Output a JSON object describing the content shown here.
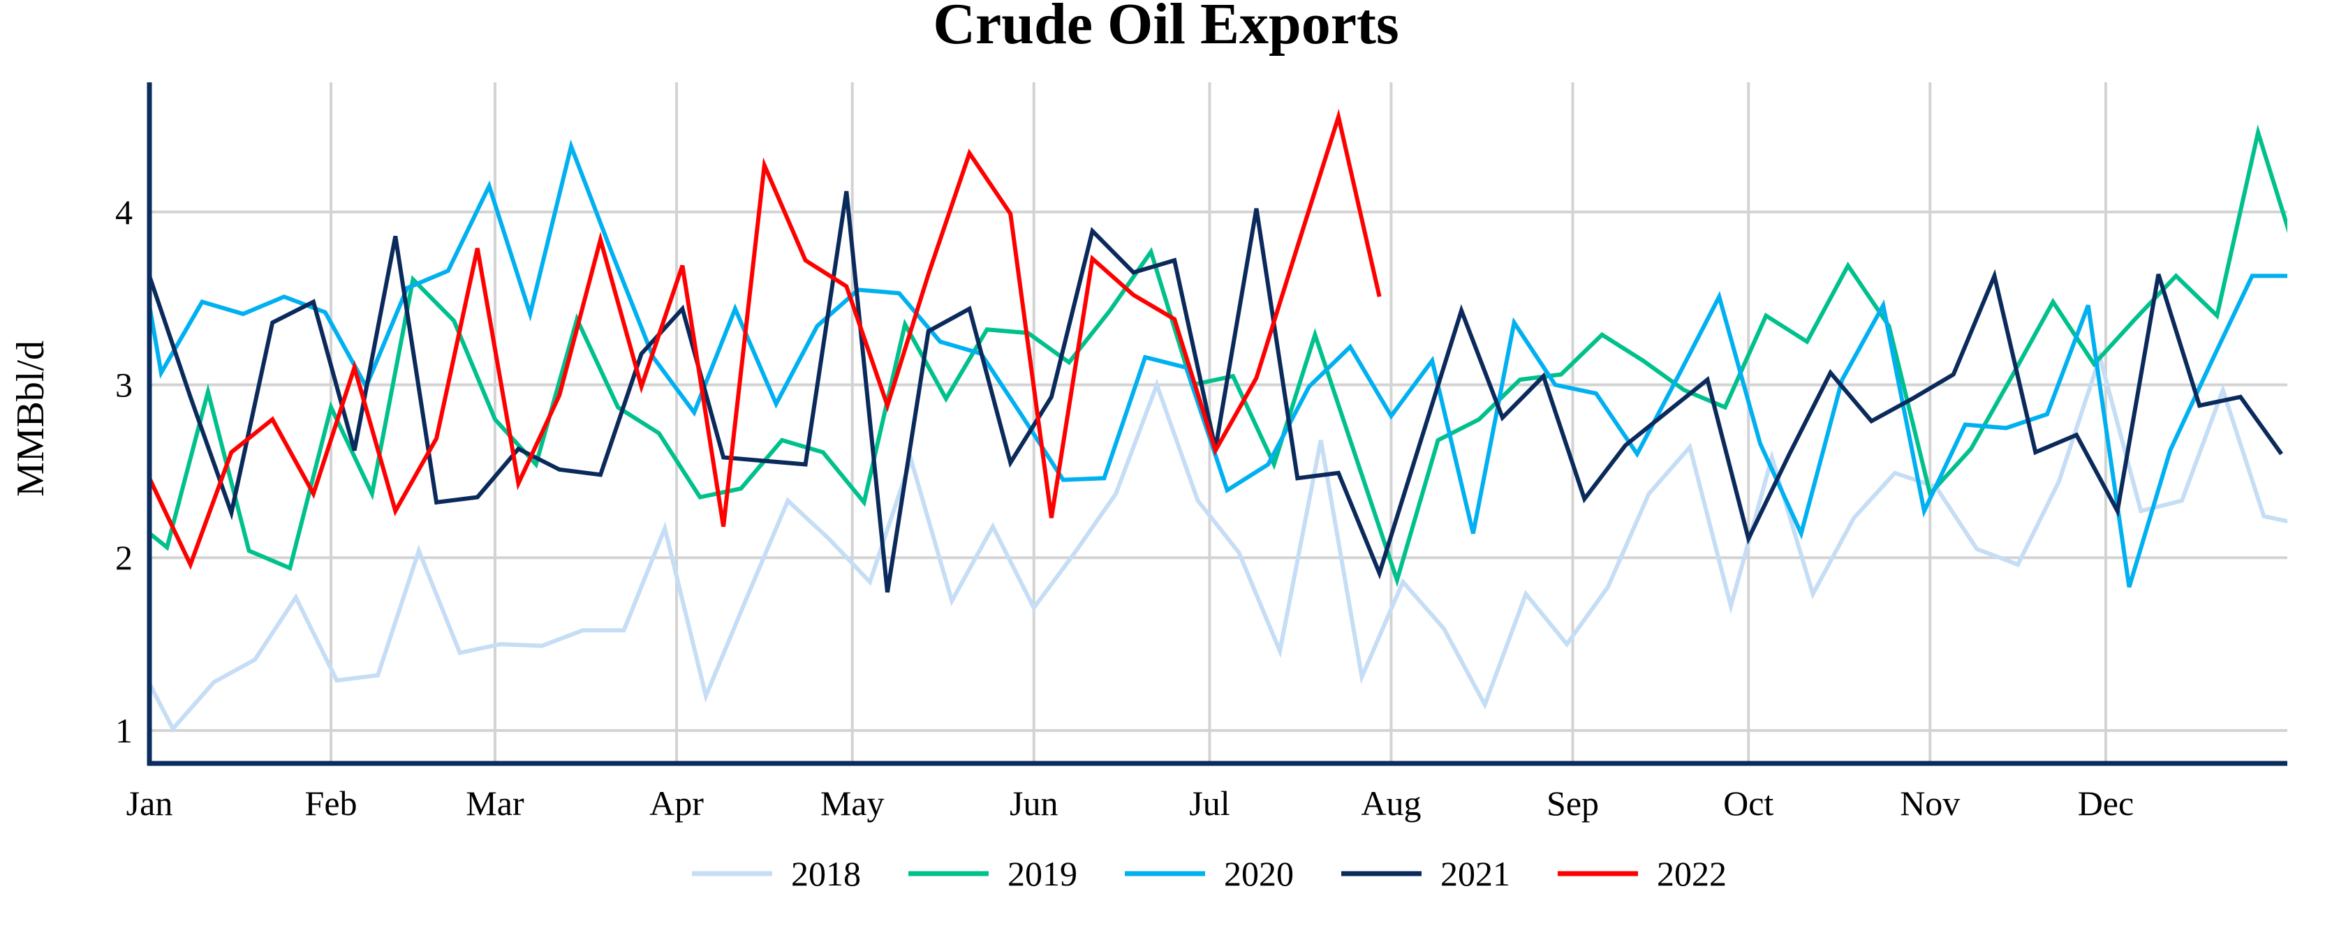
{
  "chart_data": {
    "type": "line",
    "title": "Crude Oil Exports",
    "xlabel": "",
    "ylabel": "MMBbl/d",
    "x_unit": "day of year",
    "xlim": [
      0,
      365
    ],
    "ylim": [
      0.81,
      4.75
    ],
    "grid": true,
    "legend_position": "bottom-center",
    "x_ticks": [
      {
        "label": "Jan",
        "day": 0
      },
      {
        "label": "Feb",
        "day": 31
      },
      {
        "label": "Mar",
        "day": 59
      },
      {
        "label": "Apr",
        "day": 90
      },
      {
        "label": "May",
        "day": 120
      },
      {
        "label": "Jun",
        "day": 151
      },
      {
        "label": "Jul",
        "day": 181
      },
      {
        "label": "Aug",
        "day": 212
      },
      {
        "label": "Sep",
        "day": 243
      },
      {
        "label": "Oct",
        "day": 273
      },
      {
        "label": "Nov",
        "day": 304
      },
      {
        "label": "Dec",
        "day": 334
      }
    ],
    "y_ticks": [
      "1",
      "2",
      "3",
      "4"
    ],
    "series": [
      {
        "name": "2018",
        "color": "#c5ddf5",
        "start_day": -3,
        "step_days": 7,
        "values": [
          1.47,
          1.01,
          1.28,
          1.41,
          1.77,
          1.29,
          1.32,
          2.04,
          1.45,
          1.5,
          1.49,
          1.58,
          1.58,
          2.17,
          1.2,
          1.77,
          2.33,
          2.11,
          1.86,
          2.57,
          1.75,
          2.18,
          1.71,
          2.03,
          2.37,
          3.0,
          2.33,
          2.03,
          1.46,
          2.68,
          1.31,
          1.86,
          1.59,
          1.15,
          1.79,
          1.5,
          1.83,
          2.37,
          2.64,
          1.72,
          2.58,
          1.79,
          2.23,
          2.49,
          2.41,
          2.05,
          1.96,
          2.44,
          3.16,
          2.27,
          2.33,
          2.97,
          2.24,
          2.19
        ]
      },
      {
        "name": "2019",
        "color": "#00c08b",
        "start_day": -4,
        "step_days": 7,
        "values": [
          2.25,
          2.06,
          2.96,
          2.04,
          1.94,
          2.87,
          2.37,
          3.61,
          3.37,
          2.8,
          2.54,
          3.38,
          2.87,
          2.72,
          2.35,
          2.4,
          2.68,
          2.61,
          2.32,
          3.35,
          2.92,
          3.32,
          3.3,
          3.13,
          3.43,
          3.77,
          3.0,
          3.05,
          2.54,
          3.29,
          2.58,
          1.87,
          2.68,
          2.8,
          3.03,
          3.06,
          3.29,
          3.14,
          2.97,
          2.87,
          3.4,
          3.25,
          3.69,
          3.34,
          2.37,
          2.63,
          3.05,
          3.48,
          3.12,
          3.38,
          3.63,
          3.4,
          4.46,
          3.7
        ]
      },
      {
        "name": "2020",
        "color": "#00b0f0",
        "start_day": -5,
        "step_days": 7,
        "values": [
          4.43,
          3.07,
          3.48,
          3.41,
          3.51,
          3.42,
          2.99,
          3.56,
          3.66,
          4.15,
          3.41,
          4.38,
          3.76,
          3.16,
          2.84,
          3.44,
          2.89,
          3.34,
          3.55,
          3.53,
          3.25,
          3.18,
          2.82,
          2.45,
          2.46,
          3.16,
          3.1,
          2.39,
          2.54,
          2.99,
          3.22,
          2.82,
          3.14,
          2.14,
          3.36,
          3.0,
          2.95,
          2.6,
          3.05,
          3.51,
          2.66,
          2.14,
          3.03,
          3.46,
          2.27,
          2.77,
          2.75,
          2.83,
          3.46,
          1.83,
          2.62,
          3.13,
          3.63,
          3.63
        ]
      },
      {
        "name": "2021",
        "color": "#0b2a5c",
        "start_day": 0,
        "step_days": 7,
        "values": [
          3.63,
          2.93,
          2.26,
          3.36,
          3.48,
          2.62,
          3.86,
          2.32,
          2.35,
          2.63,
          2.51,
          2.48,
          3.18,
          3.44,
          2.58,
          2.56,
          2.54,
          4.12,
          1.8,
          3.31,
          3.44,
          2.55,
          2.93,
          3.89,
          3.65,
          3.72,
          2.63,
          4.02,
          2.46,
          2.49,
          1.91,
          2.67,
          3.43,
          2.81,
          3.05,
          2.34,
          2.65,
          2.84,
          3.03,
          2.11,
          2.6,
          3.07,
          2.79,
          2.92,
          3.06,
          3.63,
          2.61,
          2.71,
          2.27,
          3.64,
          2.88,
          2.93,
          2.6
        ]
      },
      {
        "name": "2022",
        "color": "#ff0000",
        "start_day": 0,
        "step_days": 7,
        "values": [
          2.46,
          1.96,
          2.61,
          2.8,
          2.37,
          3.1,
          2.27,
          2.69,
          3.79,
          2.43,
          2.94,
          3.84,
          2.99,
          3.69,
          2.18,
          4.27,
          3.72,
          3.57,
          2.88,
          3.64,
          4.34,
          3.99,
          2.23,
          3.73,
          3.52,
          3.38,
          2.62,
          3.04,
          3.8,
          4.55,
          3.51
        ]
      }
    ],
    "axis_color": "#0a2d5e",
    "grid_color": "#d3d3d3"
  }
}
